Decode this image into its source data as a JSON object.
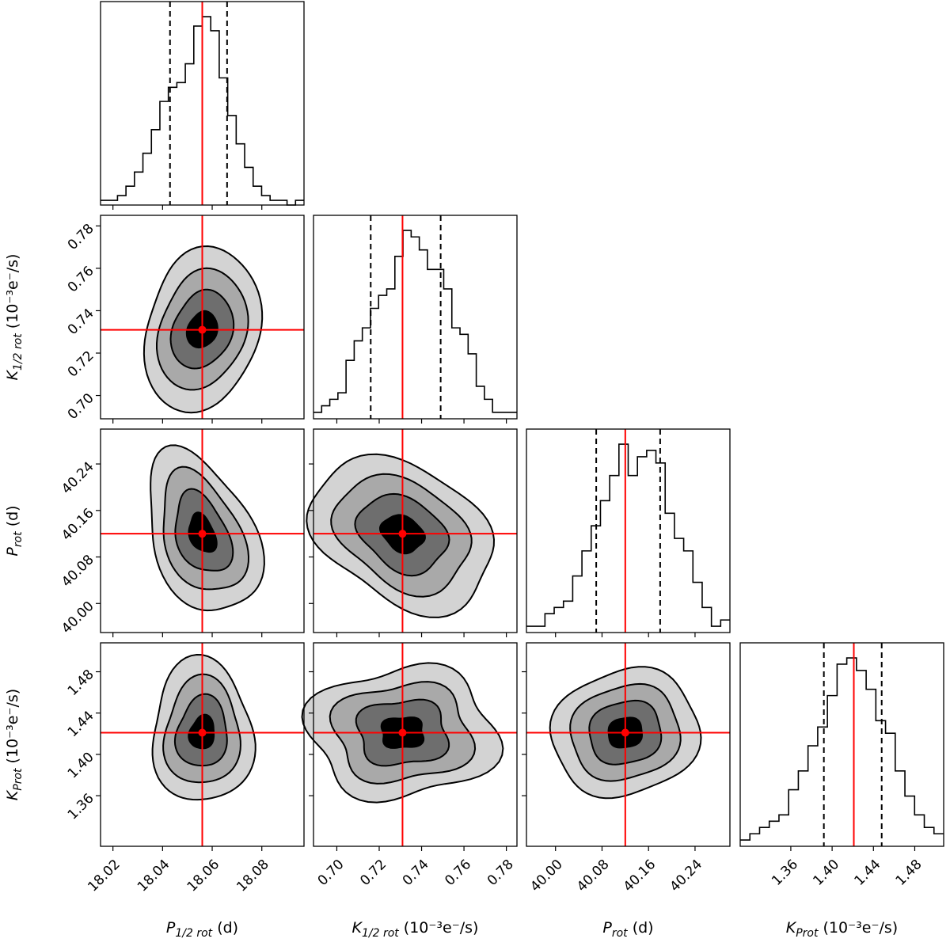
{
  "chart_data": {
    "type": "corner",
    "parameters": [
      {
        "key": "p_half",
        "label_main": "P",
        "label_sub": "1/2 rot",
        "label_unit": " (d)",
        "range": [
          18.015,
          18.097
        ],
        "ticks": [
          18.02,
          18.04,
          18.06,
          18.08
        ],
        "tick_labels": [
          "18.02",
          "18.04",
          "18.06",
          "18.08"
        ],
        "truth": 18.056,
        "quantiles": [
          18.043,
          18.066
        ]
      },
      {
        "key": "k_half",
        "label_main": "K",
        "label_sub": "1/2 rot",
        "label_unit": " (10⁻³e⁻/s)",
        "range": [
          0.689,
          0.785
        ],
        "ticks": [
          0.7,
          0.72,
          0.74,
          0.76,
          0.78
        ],
        "tick_labels": [
          "0.70",
          "0.72",
          "0.74",
          "0.76",
          "0.78"
        ],
        "truth": 0.731,
        "quantiles": [
          0.716,
          0.749
        ]
      },
      {
        "key": "p_rot",
        "label_main": "P",
        "label_sub": "rot",
        "label_unit": " (d)",
        "range": [
          39.95,
          40.3
        ],
        "ticks": [
          40.0,
          40.08,
          40.16,
          40.24
        ],
        "tick_labels": [
          "40.00",
          "40.08",
          "40.16",
          "40.24"
        ],
        "truth": 40.12,
        "quantiles": [
          40.07,
          40.18
        ]
      },
      {
        "key": "k_prot",
        "label_main": "K",
        "label_sub": "Prot",
        "label_unit": " (10⁻³e⁻/s)",
        "range": [
          1.311,
          1.508
        ],
        "ticks": [
          1.36,
          1.4,
          1.44,
          1.48
        ],
        "tick_labels": [
          "1.36",
          "1.40",
          "1.44",
          "1.48"
        ],
        "truth": 1.421,
        "quantiles": [
          1.392,
          1.448
        ]
      }
    ],
    "histograms": [
      {
        "param": "p_half",
        "counts": [
          1,
          1,
          2,
          4,
          7,
          11,
          16,
          22,
          25,
          26,
          30,
          38,
          40,
          37,
          27,
          19,
          13,
          8,
          4,
          2,
          1,
          1,
          0,
          1
        ]
      },
      {
        "param": "k_half",
        "counts": [
          1,
          2,
          3,
          4,
          9,
          12,
          14,
          17,
          19,
          20,
          25,
          29,
          28,
          26,
          23,
          23,
          20,
          14,
          13,
          10,
          5,
          3,
          1,
          1,
          1
        ]
      },
      {
        "param": "p_rot",
        "counts": [
          1,
          1,
          3,
          4,
          5,
          9,
          13,
          17,
          21,
          25,
          30,
          25,
          28,
          29,
          27,
          19,
          15,
          13,
          8,
          4,
          1,
          2
        ]
      },
      {
        "param": "k_prot",
        "counts": [
          1,
          2,
          3,
          4,
          5,
          9,
          12,
          16,
          19,
          24,
          29,
          30,
          28,
          25,
          20,
          18,
          12,
          8,
          5,
          3,
          2
        ]
      }
    ],
    "density_levels": 4,
    "contour_fills": [
      "#d3d3d3",
      "#a9a9a9",
      "#6e6e6e",
      "#000000"
    ],
    "truth_color": "#ff0000",
    "pairs": [
      {
        "x": "p_half",
        "y": "k_half",
        "center": [
          18.056,
          0.731
        ],
        "sd": [
          0.0105,
          0.016
        ],
        "corr": 0.05
      },
      {
        "x": "p_half",
        "y": "p_rot",
        "center": [
          18.056,
          40.12
        ],
        "sd": [
          0.01,
          0.06
        ],
        "corr": -0.35
      },
      {
        "x": "k_half",
        "y": "p_rot",
        "center": [
          0.731,
          40.12
        ],
        "sd": [
          0.019,
          0.055
        ],
        "corr": -0.25
      },
      {
        "x": "p_half",
        "y": "k_prot",
        "center": [
          18.056,
          1.421
        ],
        "sd": [
          0.0095,
          0.028
        ],
        "corr": 0.0
      },
      {
        "x": "k_half",
        "y": "k_prot",
        "center": [
          0.731,
          1.421
        ],
        "sd": [
          0.019,
          0.028
        ],
        "corr": 0.05
      },
      {
        "x": "p_rot",
        "y": "k_prot",
        "center": [
          40.12,
          1.421
        ],
        "sd": [
          0.055,
          0.027
        ],
        "corr": 0.1
      }
    ]
  }
}
